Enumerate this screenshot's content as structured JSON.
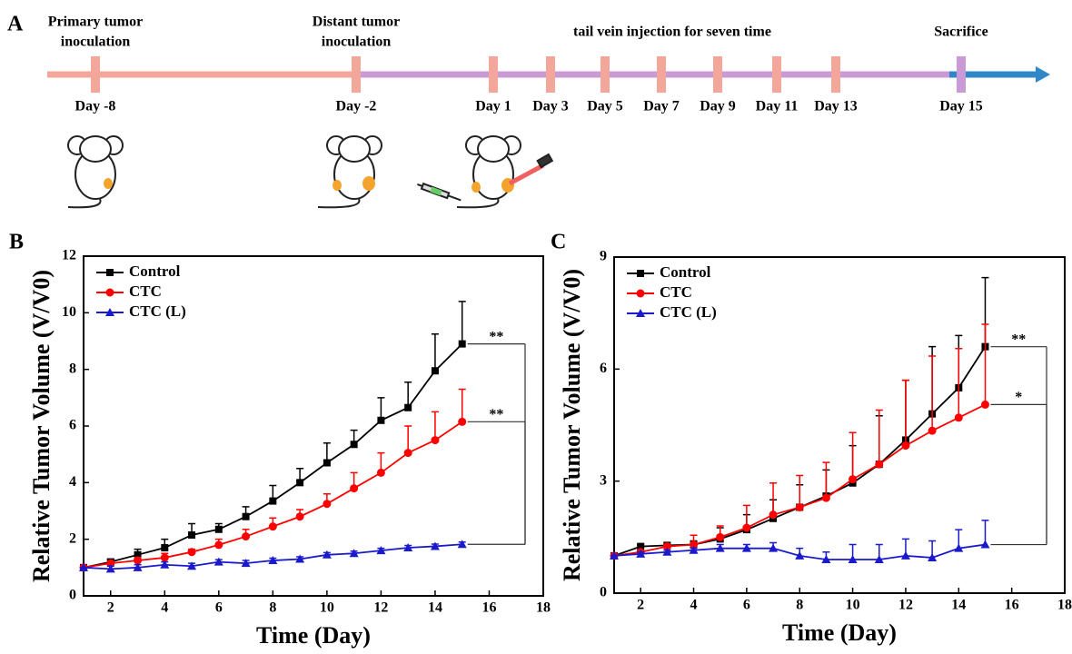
{
  "timeline": {
    "panel": "A",
    "events": [
      {
        "lines": [
          "Primary tumor",
          "inoculation"
        ]
      },
      {
        "lines": [
          "Distant tumor",
          "inoculation"
        ]
      },
      {
        "lines": [
          "tail vein injection for seven time"
        ]
      },
      {
        "lines": [
          "Sacrifice"
        ]
      }
    ],
    "days": [
      "Day -8",
      "Day -2",
      "Day 1",
      "Day 3",
      "Day 5",
      "Day 7",
      "Day 9",
      "Day 11",
      "Day 13",
      "Day 15"
    ]
  },
  "chart_data": [
    {
      "type": "line",
      "panel": "B",
      "xlabel": "Time (Day)",
      "ylabel": "Relative Tumor Volume (V/V0)",
      "x": [
        1,
        2,
        3,
        4,
        5,
        6,
        7,
        8,
        9,
        10,
        11,
        12,
        13,
        14,
        15
      ],
      "xlim": [
        1,
        18
      ],
      "xticks": [
        2,
        4,
        6,
        8,
        10,
        12,
        14,
        16,
        18
      ],
      "ylim": [
        0,
        12
      ],
      "yticks": [
        0,
        2,
        4,
        6,
        8,
        10,
        12
      ],
      "legend": "upper left",
      "series": [
        {
          "name": "Control",
          "color": "#000000",
          "marker": "square",
          "values": [
            1,
            1.2,
            1.45,
            1.7,
            2.15,
            2.35,
            2.8,
            3.35,
            4.0,
            4.7,
            5.35,
            6.2,
            6.65,
            7.95,
            8.9
          ],
          "errors": [
            0,
            0.1,
            0.2,
            0.3,
            0.4,
            0.2,
            0.35,
            0.55,
            0.5,
            0.7,
            0.5,
            0.8,
            0.9,
            1.3,
            1.5
          ]
        },
        {
          "name": "CTC",
          "color": "#ff0000",
          "marker": "circle",
          "values": [
            1,
            1.15,
            1.25,
            1.35,
            1.55,
            1.8,
            2.1,
            2.45,
            2.8,
            3.25,
            3.8,
            4.35,
            5.05,
            5.5,
            6.15
          ],
          "errors": [
            0,
            0.05,
            0.1,
            0.15,
            0.1,
            0.2,
            0.25,
            0.3,
            0.25,
            0.35,
            0.55,
            0.7,
            0.95,
            1.0,
            1.15
          ]
        },
        {
          "name": "CTC (L)",
          "color": "#1a1acc",
          "marker": "triangle",
          "values": [
            1,
            0.95,
            1.0,
            1.1,
            1.05,
            1.2,
            1.15,
            1.25,
            1.3,
            1.45,
            1.5,
            1.6,
            1.7,
            1.75,
            1.82
          ],
          "errors": [
            0,
            0.1,
            0.1,
            0.1,
            0.1,
            0.08,
            0.1,
            0.08,
            0.08,
            0.08,
            0.08,
            0.08,
            0.08,
            0.08,
            0.08
          ]
        }
      ],
      "annotations": [
        "**",
        "**"
      ]
    },
    {
      "type": "line",
      "panel": "C",
      "xlabel": "Time (Day)",
      "ylabel": "Relative Tumor Volume (V/V0)",
      "x": [
        1,
        2,
        3,
        4,
        5,
        6,
        7,
        8,
        9,
        10,
        11,
        12,
        13,
        14,
        15
      ],
      "xlim": [
        1,
        18
      ],
      "xticks": [
        2,
        4,
        6,
        8,
        10,
        12,
        14,
        16,
        18
      ],
      "ylim": [
        0,
        9
      ],
      "yticks": [
        0,
        3,
        6,
        9
      ],
      "legend": "upper left",
      "series": [
        {
          "name": "Control",
          "color": "#000000",
          "marker": "square",
          "values": [
            1,
            1.25,
            1.28,
            1.3,
            1.45,
            1.7,
            2.0,
            2.3,
            2.6,
            2.95,
            3.45,
            4.1,
            4.8,
            5.5,
            6.6
          ],
          "errors": [
            0,
            0.05,
            0.05,
            0.1,
            0.3,
            0.4,
            0.5,
            0.6,
            0.7,
            1.0,
            1.3,
            1.6,
            1.8,
            1.4,
            1.85
          ]
        },
        {
          "name": "CTC",
          "color": "#ff0000",
          "marker": "circle",
          "values": [
            1,
            1.1,
            1.25,
            1.3,
            1.5,
            1.75,
            2.1,
            2.3,
            2.55,
            3.05,
            3.45,
            3.95,
            4.35,
            4.7,
            5.05
          ],
          "errors": [
            0,
            0.05,
            0.05,
            0.25,
            0.3,
            0.6,
            0.85,
            0.85,
            0.95,
            1.25,
            1.45,
            1.75,
            2.0,
            1.85,
            2.15
          ]
        },
        {
          "name": "CTC (L)",
          "color": "#1a1acc",
          "marker": "triangle",
          "values": [
            1,
            1.05,
            1.1,
            1.15,
            1.2,
            1.2,
            1.2,
            1.0,
            0.9,
            0.9,
            0.9,
            1.0,
            0.95,
            1.2,
            1.3
          ],
          "errors": [
            0,
            0.05,
            0.05,
            0.05,
            0.1,
            0.1,
            0.15,
            0.2,
            0.2,
            0.4,
            0.4,
            0.45,
            0.45,
            0.5,
            0.65
          ]
        }
      ],
      "annotations": [
        "**",
        "*"
      ]
    }
  ]
}
